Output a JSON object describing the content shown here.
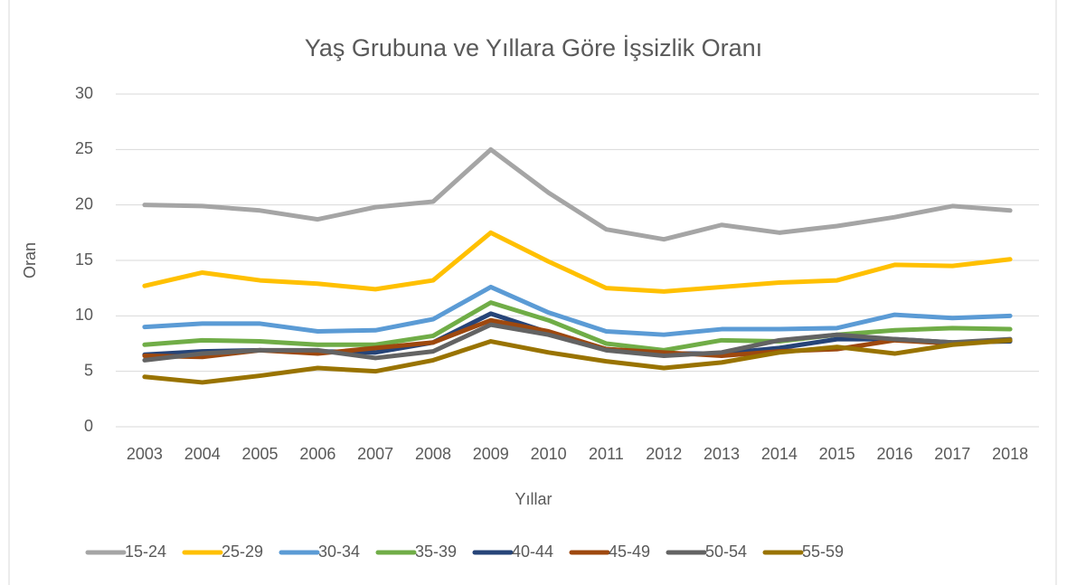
{
  "chart_data": {
    "type": "line",
    "title": "Yaş Grubuna ve Yıllara Göre İşsizlik Oranı",
    "x_label": "Yıllar",
    "y_label": "Oran",
    "categories": [
      "2003",
      "2004",
      "2005",
      "2006",
      "2007",
      "2008",
      "2009",
      "2010",
      "2011",
      "2012",
      "2013",
      "2014",
      "2015",
      "2016",
      "2017",
      "2018"
    ],
    "series": [
      {
        "name": "15-24",
        "color": "#a5a5a5",
        "values": [
          20.0,
          19.9,
          19.5,
          18.7,
          19.8,
          20.3,
          25.0,
          21.1,
          17.8,
          16.9,
          18.2,
          17.5,
          18.1,
          18.9,
          19.9,
          19.5
        ]
      },
      {
        "name": "25-29",
        "color": "#ffc000",
        "values": [
          12.7,
          13.9,
          13.2,
          12.9,
          12.4,
          13.2,
          17.5,
          14.9,
          12.5,
          12.2,
          12.6,
          13.0,
          13.2,
          14.6,
          14.5,
          15.1
        ]
      },
      {
        "name": "30-34",
        "color": "#5b9bd5",
        "values": [
          9.0,
          9.3,
          9.3,
          8.6,
          8.7,
          9.7,
          12.6,
          10.3,
          8.6,
          8.3,
          8.8,
          8.8,
          8.9,
          10.1,
          9.8,
          10.0
        ]
      },
      {
        "name": "35-39",
        "color": "#70ad47",
        "values": [
          7.4,
          7.8,
          7.7,
          7.4,
          7.4,
          8.2,
          11.2,
          9.6,
          7.5,
          6.9,
          7.8,
          7.7,
          8.3,
          8.7,
          8.9,
          8.8
        ]
      },
      {
        "name": "40-44",
        "color": "#264478",
        "values": [
          6.5,
          6.8,
          6.9,
          6.8,
          6.7,
          7.6,
          10.2,
          8.5,
          7.0,
          6.6,
          6.6,
          7.1,
          7.9,
          7.9,
          7.6,
          7.7
        ]
      },
      {
        "name": "45-49",
        "color": "#9e480e",
        "values": [
          6.4,
          6.3,
          6.9,
          6.6,
          7.1,
          7.6,
          9.6,
          8.6,
          7.0,
          6.7,
          6.4,
          6.8,
          7.0,
          7.8,
          7.5,
          7.8
        ]
      },
      {
        "name": "50-54",
        "color": "#636363",
        "values": [
          6.0,
          6.6,
          6.9,
          6.9,
          6.2,
          6.8,
          9.2,
          8.3,
          6.9,
          6.4,
          6.7,
          7.8,
          8.3,
          7.9,
          7.6,
          7.9
        ]
      },
      {
        "name": "55-59",
        "color": "#997300",
        "values": [
          4.5,
          4.0,
          4.6,
          5.3,
          5.0,
          6.0,
          7.7,
          6.7,
          5.9,
          5.3,
          5.8,
          6.7,
          7.2,
          6.6,
          7.4,
          7.8
        ]
      }
    ],
    "ylim": [
      0,
      30
    ],
    "yticks": [
      0,
      5,
      10,
      15,
      20,
      25,
      30
    ],
    "grid": true,
    "legend": "bottom"
  }
}
